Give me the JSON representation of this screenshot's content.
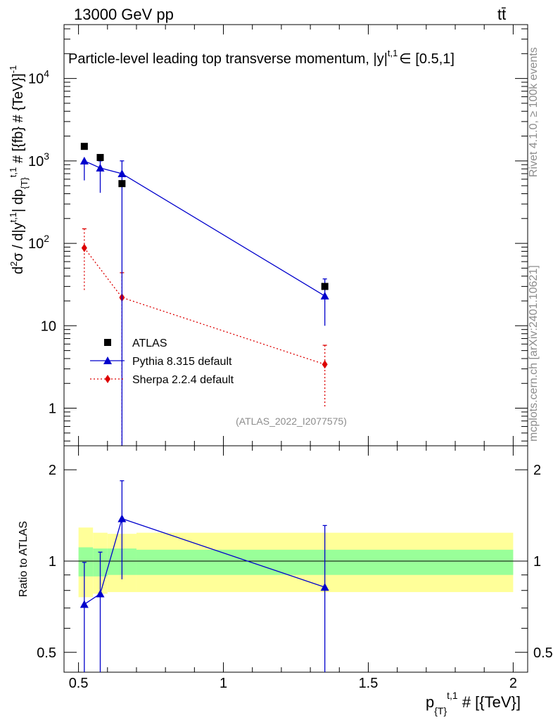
{
  "header": {
    "energy": "13000 GeV pp",
    "process": "tt̄",
    "rivet": "Rivet 4.1.0, ≥ 100k events",
    "site": "mcplots.cern.ch [arXiv:2401.10621]",
    "analysis": "(ATLAS_2022_I2077575)"
  },
  "chart_data": [
    {
      "type": "scatter",
      "title": "Particle-level leading top transverse momentum, |y| ∈ [0.5,1]",
      "title_main": "Particle-level leading top transverse momentum, ",
      "title_y": "|y|",
      "title_y_sup": "t,1",
      "title_range": "∈ [0.5,1]",
      "ylabel": "d²σ / d|y^t,1| dp_{T}^t,1 # [{fb} # {TeV}]^-1",
      "yscale": "log",
      "ylim": [
        0.35,
        45000
      ],
      "xlim": [
        0.45,
        2.05
      ],
      "yticks": [
        {
          "v": 1,
          "label": "1"
        },
        {
          "v": 10,
          "label": "10"
        },
        {
          "v": 100,
          "label": "10",
          "sup": "2"
        },
        {
          "v": 1000,
          "label": "10",
          "sup": "3"
        },
        {
          "v": 10000,
          "label": "10",
          "sup": "4"
        }
      ],
      "legend": [
        {
          "name": "ATLAS",
          "color": "#000000",
          "marker": "square"
        },
        {
          "name": "Pythia 8.315 default",
          "color": "#0000cc",
          "marker": "triangle"
        },
        {
          "name": "Sherpa 2.2.4 default",
          "color": "#dd0000",
          "marker": "diamond"
        }
      ],
      "series": [
        {
          "name": "ATLAS",
          "x": [
            0.52,
            0.575,
            0.65,
            1.35
          ],
          "y": [
            1500,
            1100,
            530,
            30
          ]
        },
        {
          "name": "Pythia 8.315 default",
          "x": [
            0.52,
            0.575,
            0.65,
            1.35
          ],
          "y": [
            1000,
            820,
            700,
            23
          ],
          "err_lo": [
            580,
            410,
            0.3,
            10
          ],
          "err_hi": [
            1000,
            1000,
            1000,
            37
          ]
        },
        {
          "name": "Sherpa 2.2.4 default",
          "x": [
            0.52,
            0.65,
            1.35
          ],
          "y": [
            88,
            22,
            3.4
          ],
          "err_lo": [
            26,
            0.3,
            1.0
          ],
          "err_hi": [
            150,
            44,
            5.8
          ]
        }
      ]
    },
    {
      "type": "scatter",
      "ylabel": "Ratio to ATLAS",
      "xlabel": "p_{T}^t,1 # [{TeV}]",
      "xlabel_main": "p",
      "xlabel_sub": "{T}",
      "xlabel_sup": "t,1",
      "xlabel_tail": " # [{TeV}]",
      "yscale": "log",
      "ylim": [
        0.43,
        2.4
      ],
      "xlim": [
        0.45,
        2.05
      ],
      "yticks": [
        {
          "v": 0.5,
          "label": "0.5"
        },
        {
          "v": 1,
          "label": "1"
        },
        {
          "v": 2,
          "label": "2"
        }
      ],
      "xticks": [
        {
          "v": 0.5,
          "label": "0.5"
        },
        {
          "v": 1,
          "label": "1"
        },
        {
          "v": 1.5,
          "label": "1.5"
        },
        {
          "v": 2,
          "label": "2"
        }
      ],
      "bands": [
        {
          "x0": 0.5,
          "x1": 0.55,
          "green": [
            0.89,
            1.11
          ],
          "yellow": [
            0.76,
            1.29
          ]
        },
        {
          "x0": 0.55,
          "x1": 0.6,
          "green": [
            0.89,
            1.1
          ],
          "yellow": [
            0.78,
            1.24
          ]
        },
        {
          "x0": 0.6,
          "x1": 0.7,
          "green": [
            0.9,
            1.1
          ],
          "yellow": [
            0.79,
            1.23
          ]
        },
        {
          "x0": 0.7,
          "x1": 2.0,
          "green": [
            0.9,
            1.09
          ],
          "yellow": [
            0.79,
            1.24
          ]
        }
      ],
      "series": [
        {
          "name": "Pythia 8.315 default",
          "x": [
            0.52,
            0.575,
            0.65,
            1.35
          ],
          "y": [
            0.72,
            0.78,
            1.38,
            0.82
          ],
          "err_lo": [
            0.2,
            0.2,
            0.87,
            0.2
          ],
          "err_hi": [
            0.99,
            1.07,
            1.84,
            1.31
          ]
        }
      ]
    }
  ]
}
